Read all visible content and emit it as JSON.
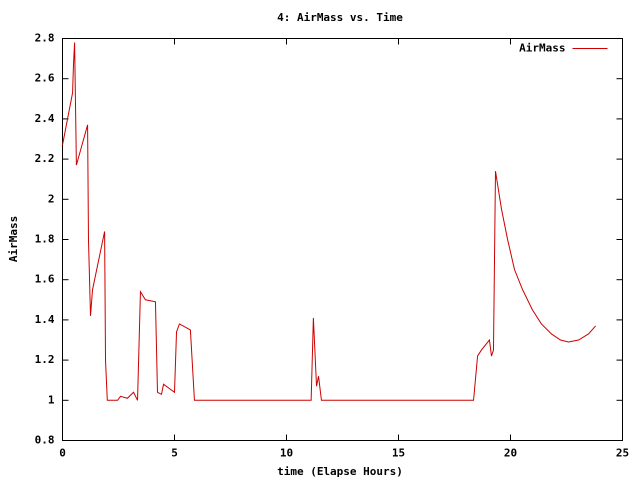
{
  "chart_data": {
    "type": "line",
    "title": "4: AirMass vs. Time",
    "xlabel": "time (Elapse Hours)",
    "ylabel": "AirMass",
    "x": [
      0,
      0.45,
      0.49,
      0.54,
      0.62,
      1.12,
      1.16,
      1.25,
      1.34,
      1.88,
      1.92,
      2.0,
      2.46,
      2.59,
      2.9,
      3.17,
      3.35,
      3.48,
      3.7,
      4.15,
      4.24,
      4.42,
      4.51,
      5.0,
      5.09,
      5.22,
      5.71,
      5.89,
      11.1,
      11.2,
      11.34,
      11.43,
      11.56,
      18.35,
      18.53,
      18.7,
      19.06,
      19.15,
      19.24,
      19.33,
      19.6,
      19.87,
      20.18,
      20.54,
      20.98,
      21.38,
      21.83,
      22.23,
      22.59,
      23.04,
      23.48,
      23.8
    ],
    "series": [
      {
        "name": "AirMass",
        "color": "#cc0000",
        "values": [
          2.27,
          2.53,
          2.67,
          2.78,
          2.17,
          2.37,
          1.8,
          1.42,
          1.55,
          1.84,
          1.2,
          1.0,
          1.0,
          1.02,
          1.01,
          1.04,
          1.0,
          1.54,
          1.5,
          1.49,
          1.04,
          1.03,
          1.08,
          1.04,
          1.34,
          1.38,
          1.35,
          1.0,
          1.0,
          1.41,
          1.07,
          1.12,
          1.0,
          1.0,
          1.22,
          1.25,
          1.3,
          1.22,
          1.25,
          2.14,
          1.95,
          1.8,
          1.65,
          1.55,
          1.45,
          1.38,
          1.33,
          1.3,
          1.29,
          1.3,
          1.33,
          1.37
        ]
      }
    ],
    "xlim": [
      0,
      25
    ],
    "xticks": [
      0,
      5,
      10,
      15,
      20,
      25
    ],
    "ylim": [
      0.8,
      2.8
    ],
    "yticks": [
      0.8,
      1,
      1.2,
      1.4,
      1.6,
      1.8,
      2,
      2.2,
      2.4,
      2.6,
      2.8
    ],
    "grid": false,
    "legend": "upper right"
  }
}
